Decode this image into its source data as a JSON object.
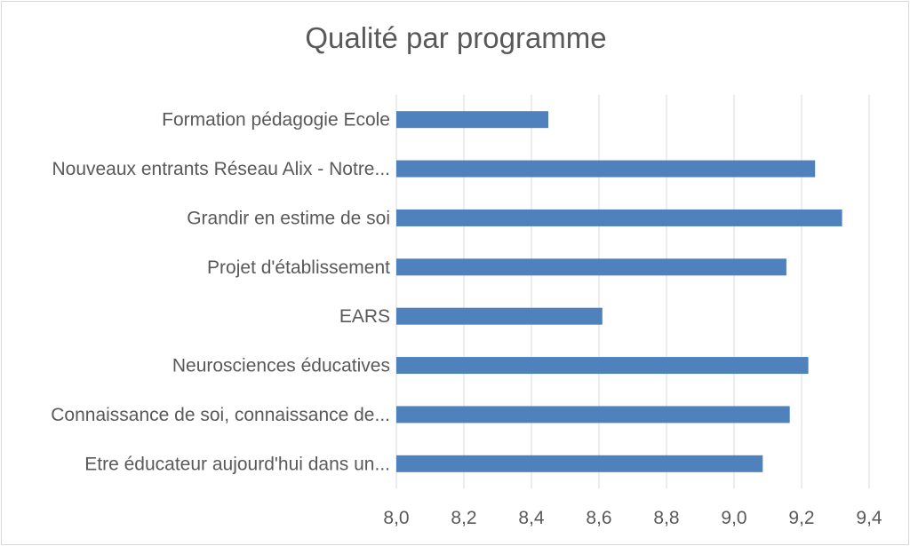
{
  "chart_data": {
    "type": "bar",
    "orientation": "horizontal",
    "title": "Qualité par programme",
    "categories": [
      "Formation pédagogie Ecole",
      "Nouveaux entrants Réseau Alix - Notre...",
      "Grandir en estime de soi",
      "Projet d'établissement",
      "EARS",
      "Neurosciences éducatives",
      "Connaissance de soi, connaissance de...",
      "Etre éducateur aujourd'hui dans un..."
    ],
    "values": [
      8.45,
      9.24,
      9.32,
      9.155,
      8.61,
      9.22,
      9.165,
      9.085
    ],
    "xlim": [
      8.0,
      9.4
    ],
    "xticks": [
      8.0,
      8.2,
      8.4,
      8.6,
      8.8,
      9.0,
      9.2,
      9.4
    ],
    "tick_labels": [
      "8,0",
      "8,2",
      "8,4",
      "8,6",
      "8,8",
      "9,0",
      "9,2",
      "9,4"
    ],
    "grid": true,
    "legend": "none",
    "bar_color": "#4f81bd",
    "grid_color": "#d9d9d9",
    "text_color": "#595959"
  }
}
